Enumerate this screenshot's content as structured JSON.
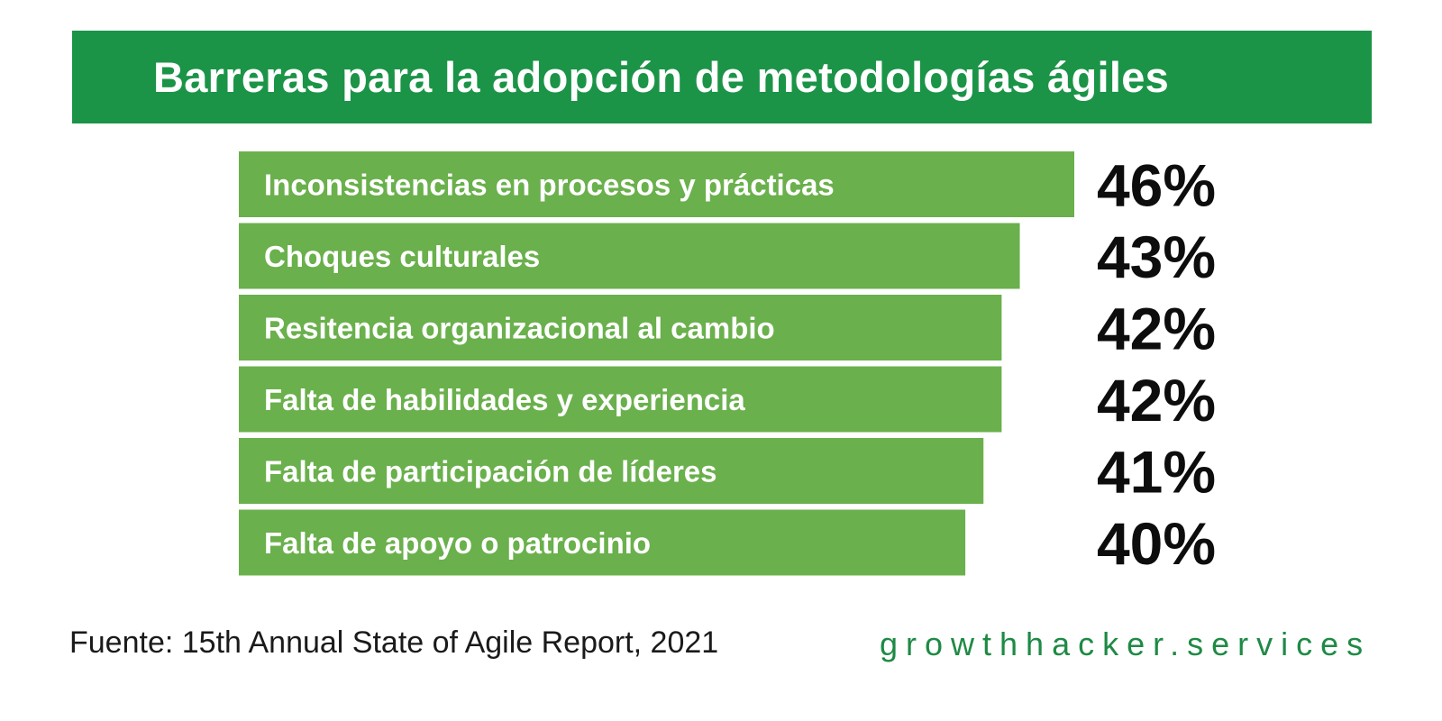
{
  "header": {
    "title": "Barreras para la adopción de metodologías ágiles"
  },
  "chart_data": {
    "type": "bar",
    "orientation": "horizontal",
    "title": "Barreras para la adopción de metodologías ágiles",
    "categories": [
      "Inconsistencias en procesos y prácticas",
      "Choques culturales",
      "Resitencia organizacional al cambio",
      "Falta de habilidades y experiencia",
      "Falta de participación de líderes",
      "Falta de apoyo o patrocinio"
    ],
    "values": [
      46,
      43,
      42,
      42,
      41,
      40
    ],
    "value_labels": [
      "46%",
      "43%",
      "42%",
      "42%",
      "41%",
      "40%"
    ],
    "unit": "%",
    "grid": false,
    "legend": "none"
  },
  "footer": {
    "source": "Fuente: 15th Annual State of Agile Report, 2021",
    "brand": "growthhacker.services"
  },
  "colors": {
    "header_bg": "#1b9447",
    "bar": "#6ab04c",
    "bar_text": "#ffffff",
    "value_text": "#0d0d0d",
    "brand_text": "#1e8a45"
  }
}
